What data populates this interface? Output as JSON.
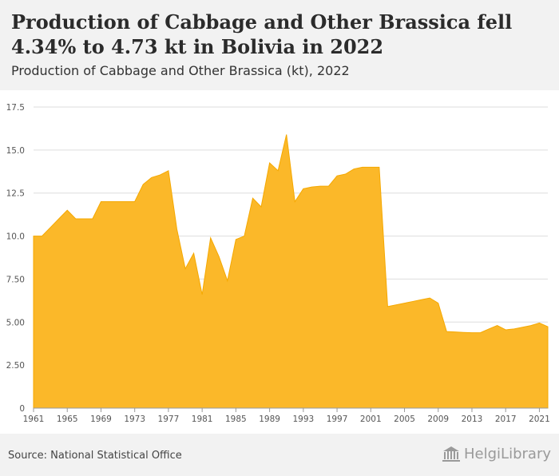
{
  "header": {
    "title": "Production of Cabbage and Other Brassica fell 4.34% to 4.73 kt in Bolivia in 2022",
    "subtitle": "Production of Cabbage and Other Brassica (kt), 2022"
  },
  "footer": {
    "source": "Source: National Statistical Office",
    "logo_text": "HelgiLibrary"
  },
  "colors": {
    "fill": "#fbb829",
    "stroke": "#f5a800",
    "grid": "#dddddd"
  },
  "chart_data": {
    "type": "area",
    "title": "Production of Cabbage and Other Brassica (kt), 2022",
    "xlabel": "",
    "ylabel": "",
    "ylim": [
      0,
      17.5
    ],
    "xlim": [
      1961,
      2022
    ],
    "grid": true,
    "y_ticks": [
      "0",
      "2.50",
      "5.00",
      "7.50",
      "10.0",
      "12.5",
      "15.0",
      "17.5"
    ],
    "y_tick_values": [
      0,
      2.5,
      5,
      7.5,
      10,
      12.5,
      15,
      17.5
    ],
    "x_ticks": [
      "1961",
      "1965",
      "1969",
      "1973",
      "1977",
      "1981",
      "1985",
      "1989",
      "1993",
      "1997",
      "2001",
      "2005",
      "2009",
      "2013",
      "2017",
      "2021"
    ],
    "x": [
      1961,
      1962,
      1963,
      1964,
      1965,
      1966,
      1967,
      1968,
      1969,
      1970,
      1971,
      1972,
      1973,
      1974,
      1975,
      1976,
      1977,
      1978,
      1979,
      1980,
      1981,
      1982,
      1983,
      1984,
      1985,
      1986,
      1987,
      1988,
      1989,
      1990,
      1991,
      1992,
      1993,
      1994,
      1995,
      1996,
      1997,
      1998,
      1999,
      2000,
      2001,
      2002,
      2003,
      2004,
      2005,
      2006,
      2007,
      2008,
      2009,
      2010,
      2011,
      2012,
      2013,
      2014,
      2015,
      2016,
      2017,
      2018,
      2019,
      2020,
      2021,
      2022
    ],
    "series": [
      {
        "values": [
          10.0,
          10.0,
          10.5,
          11.0,
          11.5,
          11.0,
          11.0,
          11.0,
          12.0,
          12.0,
          12.0,
          12.0,
          12.0,
          13.0,
          13.4,
          13.55,
          13.8,
          10.4,
          8.1,
          9.0,
          6.6,
          9.9,
          8.8,
          7.4,
          9.8,
          10.0,
          12.2,
          11.7,
          14.25,
          13.8,
          15.9,
          12.0,
          12.75,
          12.85,
          12.9,
          12.9,
          13.5,
          13.6,
          13.9,
          14.0,
          14.0,
          14.0,
          5.9,
          6.0,
          6.1,
          6.2,
          6.3,
          6.4,
          6.1,
          4.45,
          4.43,
          4.4,
          4.38,
          4.38,
          4.6,
          4.8,
          4.55,
          4.6,
          4.7,
          4.8,
          4.95,
          4.73
        ]
      }
    ]
  }
}
